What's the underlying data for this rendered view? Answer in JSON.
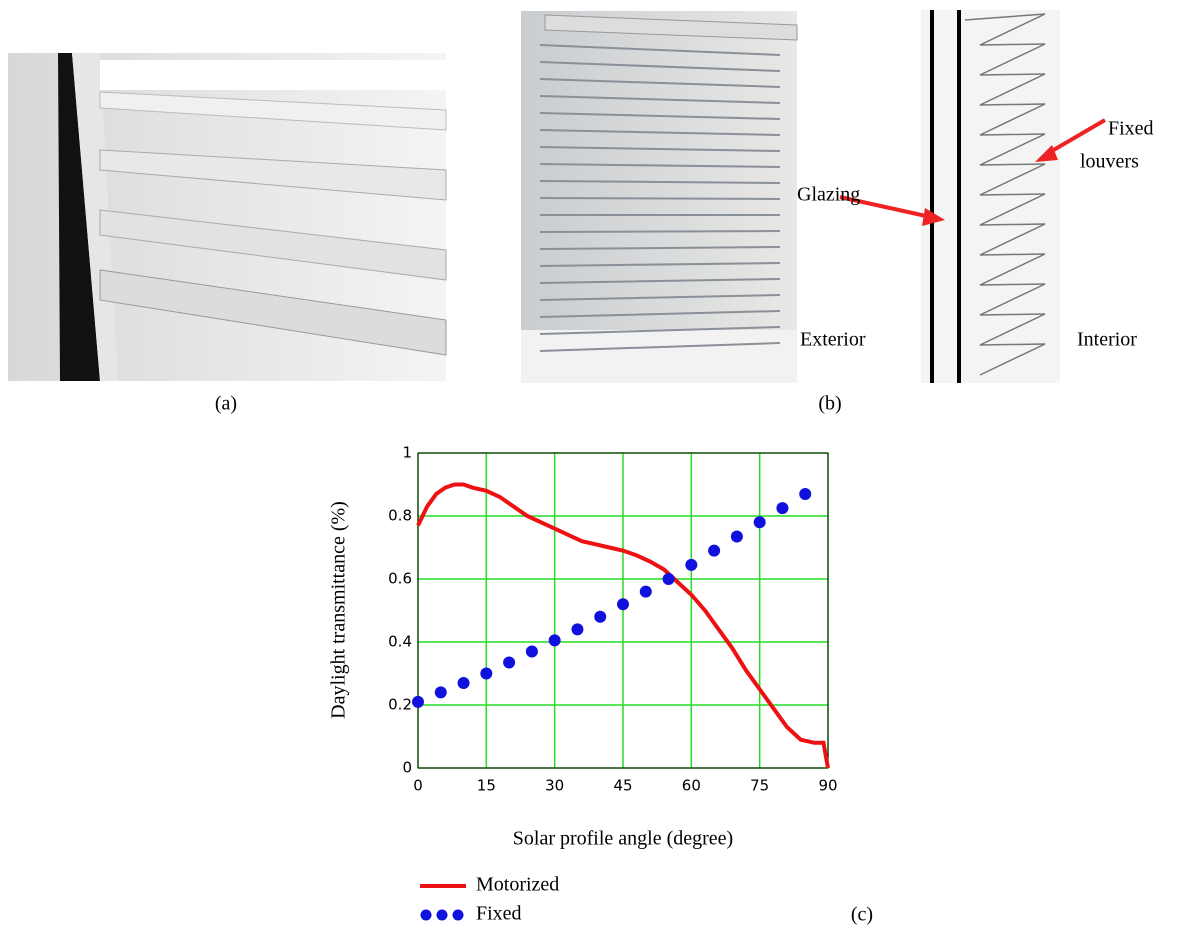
{
  "captions": {
    "a": "(a)",
    "b": "(b)",
    "c": "(c)"
  },
  "diagram": {
    "glazing": "Glazing",
    "fixed_line1": "Fixed",
    "fixed_line2": "louvers",
    "exterior": "Exterior",
    "interior": "Interior"
  },
  "chart_data": {
    "type": "line",
    "xlabel": "Solar profile angle (degree)",
    "ylabel": "Daylight transmittance (%)",
    "xlim": [
      0,
      90
    ],
    "ylim": [
      0,
      1
    ],
    "xticks": [
      0,
      15,
      30,
      45,
      60,
      75,
      90
    ],
    "yticks": [
      0,
      0.2,
      0.4,
      0.6,
      0.8,
      1
    ],
    "grid": true,
    "grid_color": "#22dd22",
    "series": [
      {
        "name": "Motorized",
        "color": "#ee1111",
        "mode": "line",
        "x": [
          0,
          2,
          4,
          6,
          8,
          10,
          12,
          15,
          18,
          21,
          24,
          27,
          30,
          33,
          36,
          39,
          42,
          45,
          48,
          51,
          54,
          57,
          60,
          63,
          66,
          69,
          72,
          75,
          78,
          81,
          84,
          87,
          89,
          90
        ],
        "values": [
          0.77,
          0.83,
          0.87,
          0.89,
          0.9,
          0.9,
          0.89,
          0.88,
          0.86,
          0.83,
          0.8,
          0.78,
          0.76,
          0.74,
          0.72,
          0.71,
          0.7,
          0.69,
          0.675,
          0.655,
          0.63,
          0.59,
          0.55,
          0.5,
          0.44,
          0.38,
          0.31,
          0.25,
          0.19,
          0.13,
          0.09,
          0.08,
          0.08,
          0
        ]
      },
      {
        "name": "Fixed",
        "color": "#1111dd",
        "mode": "markers",
        "x": [
          0,
          5,
          10,
          15,
          20,
          25,
          30,
          35,
          40,
          45,
          50,
          55,
          60,
          65,
          70,
          75,
          80,
          85
        ],
        "values": [
          0.21,
          0.24,
          0.27,
          0.3,
          0.335,
          0.37,
          0.405,
          0.44,
          0.48,
          0.52,
          0.56,
          0.6,
          0.645,
          0.69,
          0.735,
          0.78,
          0.825,
          0.87
        ]
      }
    ]
  }
}
